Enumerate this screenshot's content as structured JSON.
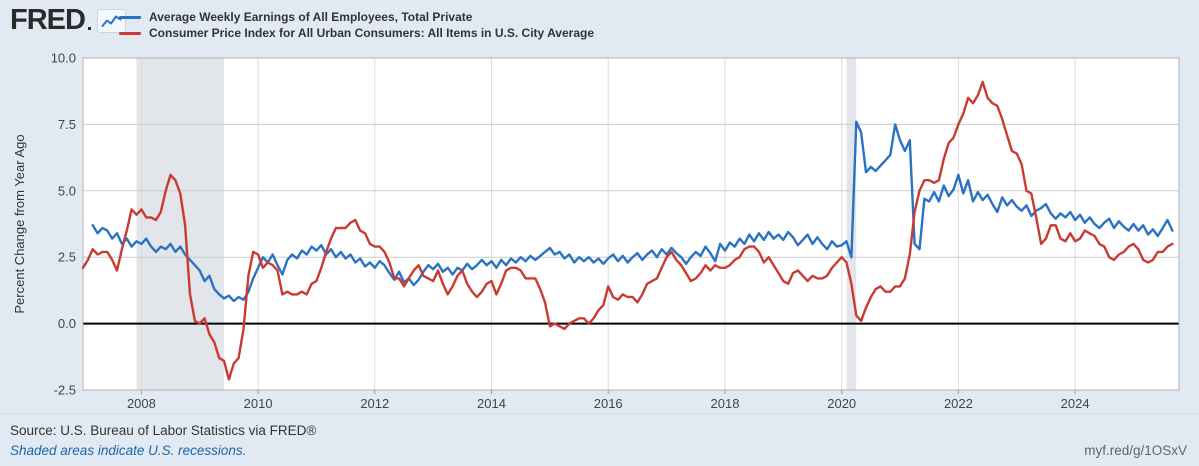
{
  "header": {
    "logo_text": "FRED",
    "logo_icon": "line-chart-squiggle-icon"
  },
  "chart_data": {
    "type": "line",
    "title": "",
    "xlabel": "",
    "ylabel": "Percent Change from Year Ago",
    "frequency": "monthly",
    "xlim": [
      2007.0,
      2025.78
    ],
    "ylim": [
      -2.5,
      10.0
    ],
    "yticks": [
      10.0,
      7.5,
      5.0,
      2.5,
      0.0,
      -2.5
    ],
    "ytick_labels": [
      "10.0",
      "7.5",
      "5.0",
      "2.5",
      "0.0",
      "-2.5"
    ],
    "xticks": [
      2008,
      2010,
      2012,
      2014,
      2016,
      2018,
      2020,
      2022,
      2024
    ],
    "grid": true,
    "legend_position": "top-left",
    "recessions": [
      [
        2007.917,
        2009.417
      ],
      [
        2020.083,
        2020.25
      ]
    ],
    "colors": {
      "recession_band": "#e2e5ea",
      "grid_h": "#cccccc",
      "grid_v": "#dddddd",
      "plot_border": "#b3b3b3",
      "zero_line": "#000000",
      "plot_background": "#ffffff",
      "page_background": "#e1eaf3"
    },
    "series": [
      {
        "name": "Average Weekly Earnings of All Employees, Total Private",
        "color": "#2a72c3",
        "start": 2007.1667,
        "values": [
          3.7,
          3.4,
          3.6,
          3.5,
          3.2,
          3.4,
          3.0,
          3.2,
          2.9,
          3.1,
          3.0,
          3.2,
          2.9,
          2.7,
          2.9,
          2.8,
          3.0,
          2.7,
          2.9,
          2.6,
          2.4,
          2.2,
          2.0,
          1.6,
          1.8,
          1.3,
          1.1,
          0.95,
          1.05,
          0.85,
          1.0,
          0.9,
          1.2,
          1.7,
          2.1,
          2.5,
          2.3,
          2.6,
          2.2,
          1.85,
          2.4,
          2.6,
          2.45,
          2.75,
          2.6,
          2.9,
          2.75,
          2.95,
          2.6,
          2.8,
          2.5,
          2.7,
          2.45,
          2.6,
          2.3,
          2.45,
          2.15,
          2.3,
          2.1,
          2.35,
          2.2,
          1.9,
          1.65,
          1.95,
          1.55,
          1.7,
          1.45,
          1.65,
          1.95,
          2.2,
          2.05,
          2.25,
          1.95,
          2.1,
          1.85,
          2.1,
          2.0,
          2.25,
          2.05,
          2.2,
          2.4,
          2.2,
          2.35,
          2.1,
          2.4,
          2.2,
          2.45,
          2.3,
          2.5,
          2.35,
          2.55,
          2.4,
          2.55,
          2.7,
          2.85,
          2.6,
          2.7,
          2.45,
          2.6,
          2.3,
          2.5,
          2.35,
          2.5,
          2.3,
          2.45,
          2.25,
          2.45,
          2.6,
          2.35,
          2.55,
          2.3,
          2.5,
          2.65,
          2.4,
          2.6,
          2.75,
          2.5,
          2.8,
          2.6,
          2.85,
          2.65,
          2.5,
          2.25,
          2.5,
          2.7,
          2.55,
          2.9,
          2.65,
          2.35,
          3.0,
          2.75,
          3.05,
          2.9,
          3.2,
          3.0,
          3.35,
          3.1,
          3.4,
          3.15,
          3.45,
          3.2,
          3.35,
          3.15,
          3.45,
          3.25,
          2.95,
          3.15,
          3.35,
          3.0,
          3.25,
          3.0,
          2.8,
          3.1,
          2.9,
          2.95,
          3.1,
          2.5,
          7.6,
          7.2,
          5.7,
          5.9,
          5.75,
          5.95,
          6.15,
          6.35,
          7.5,
          6.9,
          6.5,
          6.9,
          3.0,
          2.8,
          4.7,
          4.6,
          4.95,
          4.6,
          5.2,
          4.8,
          5.05,
          5.6,
          4.9,
          5.4,
          4.6,
          4.95,
          4.65,
          4.85,
          4.5,
          4.2,
          4.75,
          4.45,
          4.65,
          4.4,
          4.25,
          4.45,
          4.05,
          4.25,
          4.35,
          4.5,
          4.15,
          3.95,
          4.15,
          4.0,
          4.2,
          3.9,
          4.1,
          3.8,
          4.0,
          3.75,
          3.6,
          3.8,
          3.95,
          3.6,
          3.85,
          3.65,
          3.5,
          3.75,
          3.5,
          3.7,
          3.35,
          3.55,
          3.3,
          3.6,
          3.9,
          3.5
        ]
      },
      {
        "name": "Consumer Price Index for All Urban Consumers: All Items in U.S. City Average",
        "color": "#c93b32",
        "start": 2007.0,
        "values": [
          2.1,
          2.4,
          2.8,
          2.6,
          2.7,
          2.7,
          2.4,
          2.0,
          2.8,
          3.5,
          4.3,
          4.1,
          4.3,
          4.0,
          4.0,
          3.9,
          4.2,
          5.0,
          5.6,
          5.4,
          4.9,
          3.7,
          1.1,
          0.1,
          0.0,
          0.2,
          -0.4,
          -0.7,
          -1.3,
          -1.4,
          -2.1,
          -1.5,
          -1.3,
          -0.2,
          1.8,
          2.7,
          2.6,
          2.1,
          2.3,
          2.2,
          2.0,
          1.1,
          1.2,
          1.1,
          1.1,
          1.2,
          1.1,
          1.5,
          1.6,
          2.1,
          2.7,
          3.2,
          3.6,
          3.6,
          3.6,
          3.8,
          3.9,
          3.5,
          3.4,
          3.0,
          2.9,
          2.9,
          2.7,
          2.3,
          1.7,
          1.7,
          1.4,
          1.7,
          2.0,
          2.2,
          1.8,
          1.7,
          1.6,
          2.0,
          1.5,
          1.1,
          1.4,
          1.8,
          2.0,
          1.5,
          1.2,
          1.0,
          1.2,
          1.5,
          1.6,
          1.1,
          1.5,
          2.0,
          2.1,
          2.1,
          2.0,
          1.7,
          1.7,
          1.7,
          1.3,
          0.8,
          -0.1,
          0.0,
          -0.1,
          -0.2,
          0.0,
          0.1,
          0.2,
          0.2,
          0.0,
          0.2,
          0.5,
          0.7,
          1.4,
          1.0,
          0.9,
          1.1,
          1.0,
          1.0,
          0.8,
          1.1,
          1.5,
          1.6,
          1.7,
          2.1,
          2.5,
          2.7,
          2.4,
          2.2,
          1.9,
          1.6,
          1.7,
          1.9,
          2.2,
          2.0,
          2.2,
          2.1,
          2.1,
          2.2,
          2.4,
          2.5,
          2.8,
          2.9,
          2.9,
          2.7,
          2.3,
          2.5,
          2.2,
          1.9,
          1.6,
          1.5,
          1.9,
          2.0,
          1.8,
          1.6,
          1.8,
          1.7,
          1.7,
          1.8,
          2.1,
          2.3,
          2.5,
          2.3,
          1.5,
          0.3,
          0.1,
          0.6,
          1.0,
          1.3,
          1.4,
          1.2,
          1.2,
          1.4,
          1.4,
          1.7,
          2.6,
          4.2,
          5.0,
          5.4,
          5.4,
          5.3,
          5.4,
          6.2,
          6.8,
          7.0,
          7.5,
          7.9,
          8.5,
          8.3,
          8.6,
          9.1,
          8.5,
          8.3,
          8.2,
          7.7,
          7.1,
          6.5,
          6.4,
          6.0,
          5.0,
          4.9,
          4.0,
          3.0,
          3.2,
          3.7,
          3.7,
          3.2,
          3.1,
          3.4,
          3.1,
          3.2,
          3.5,
          3.4,
          3.3,
          3.0,
          2.9,
          2.5,
          2.4,
          2.6,
          2.7,
          2.9,
          3.0,
          2.8,
          2.4,
          2.3,
          2.4,
          2.7,
          2.7,
          2.9,
          3.0
        ]
      }
    ]
  },
  "footer": {
    "source": "Source: U.S. Bureau of Labor Statistics via FRED®",
    "note": "Shaded areas indicate U.S. recessions.",
    "shortlink": "myf.red/g/1OSxV"
  }
}
